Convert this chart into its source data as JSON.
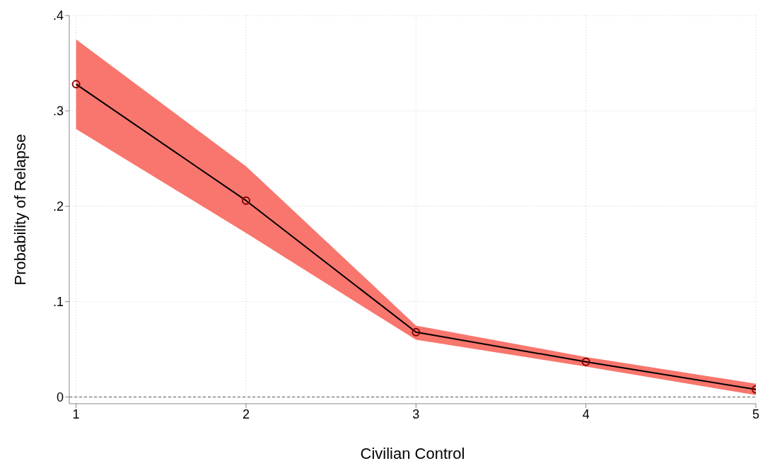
{
  "chart_data": {
    "type": "line",
    "xlabel": "Civilian Control",
    "ylabel": "Probability of Relapse",
    "x": [
      1,
      2,
      3,
      4,
      5
    ],
    "series": [
      {
        "color": "#000000",
        "values": [
          0.328,
          0.206,
          0.068,
          0.037,
          0.008
        ],
        "lower": [
          0.281,
          0.172,
          0.06,
          0.032,
          0.002
        ],
        "upper": [
          0.375,
          0.242,
          0.075,
          0.042,
          0.014
        ]
      }
    ],
    "xlim": [
      0.96,
      5
    ],
    "xticks": [
      1,
      2,
      3,
      4,
      5
    ],
    "ylim": [
      -0.007,
      0.4
    ],
    "yticks": [
      0,
      {
        "value": 0.1,
        "label": ".1"
      },
      {
        "value": 0.2,
        "label": ".2"
      },
      {
        "value": 0.3,
        "label": ".3"
      },
      {
        "value": 0.4,
        "label": ".4"
      }
    ],
    "grid": true,
    "marker": "circle",
    "line_style": "solid",
    "ref_lines": [
      {
        "axis": "y",
        "value": 0,
        "color": "#555555",
        "line_style": "dashed"
      }
    ]
  }
}
